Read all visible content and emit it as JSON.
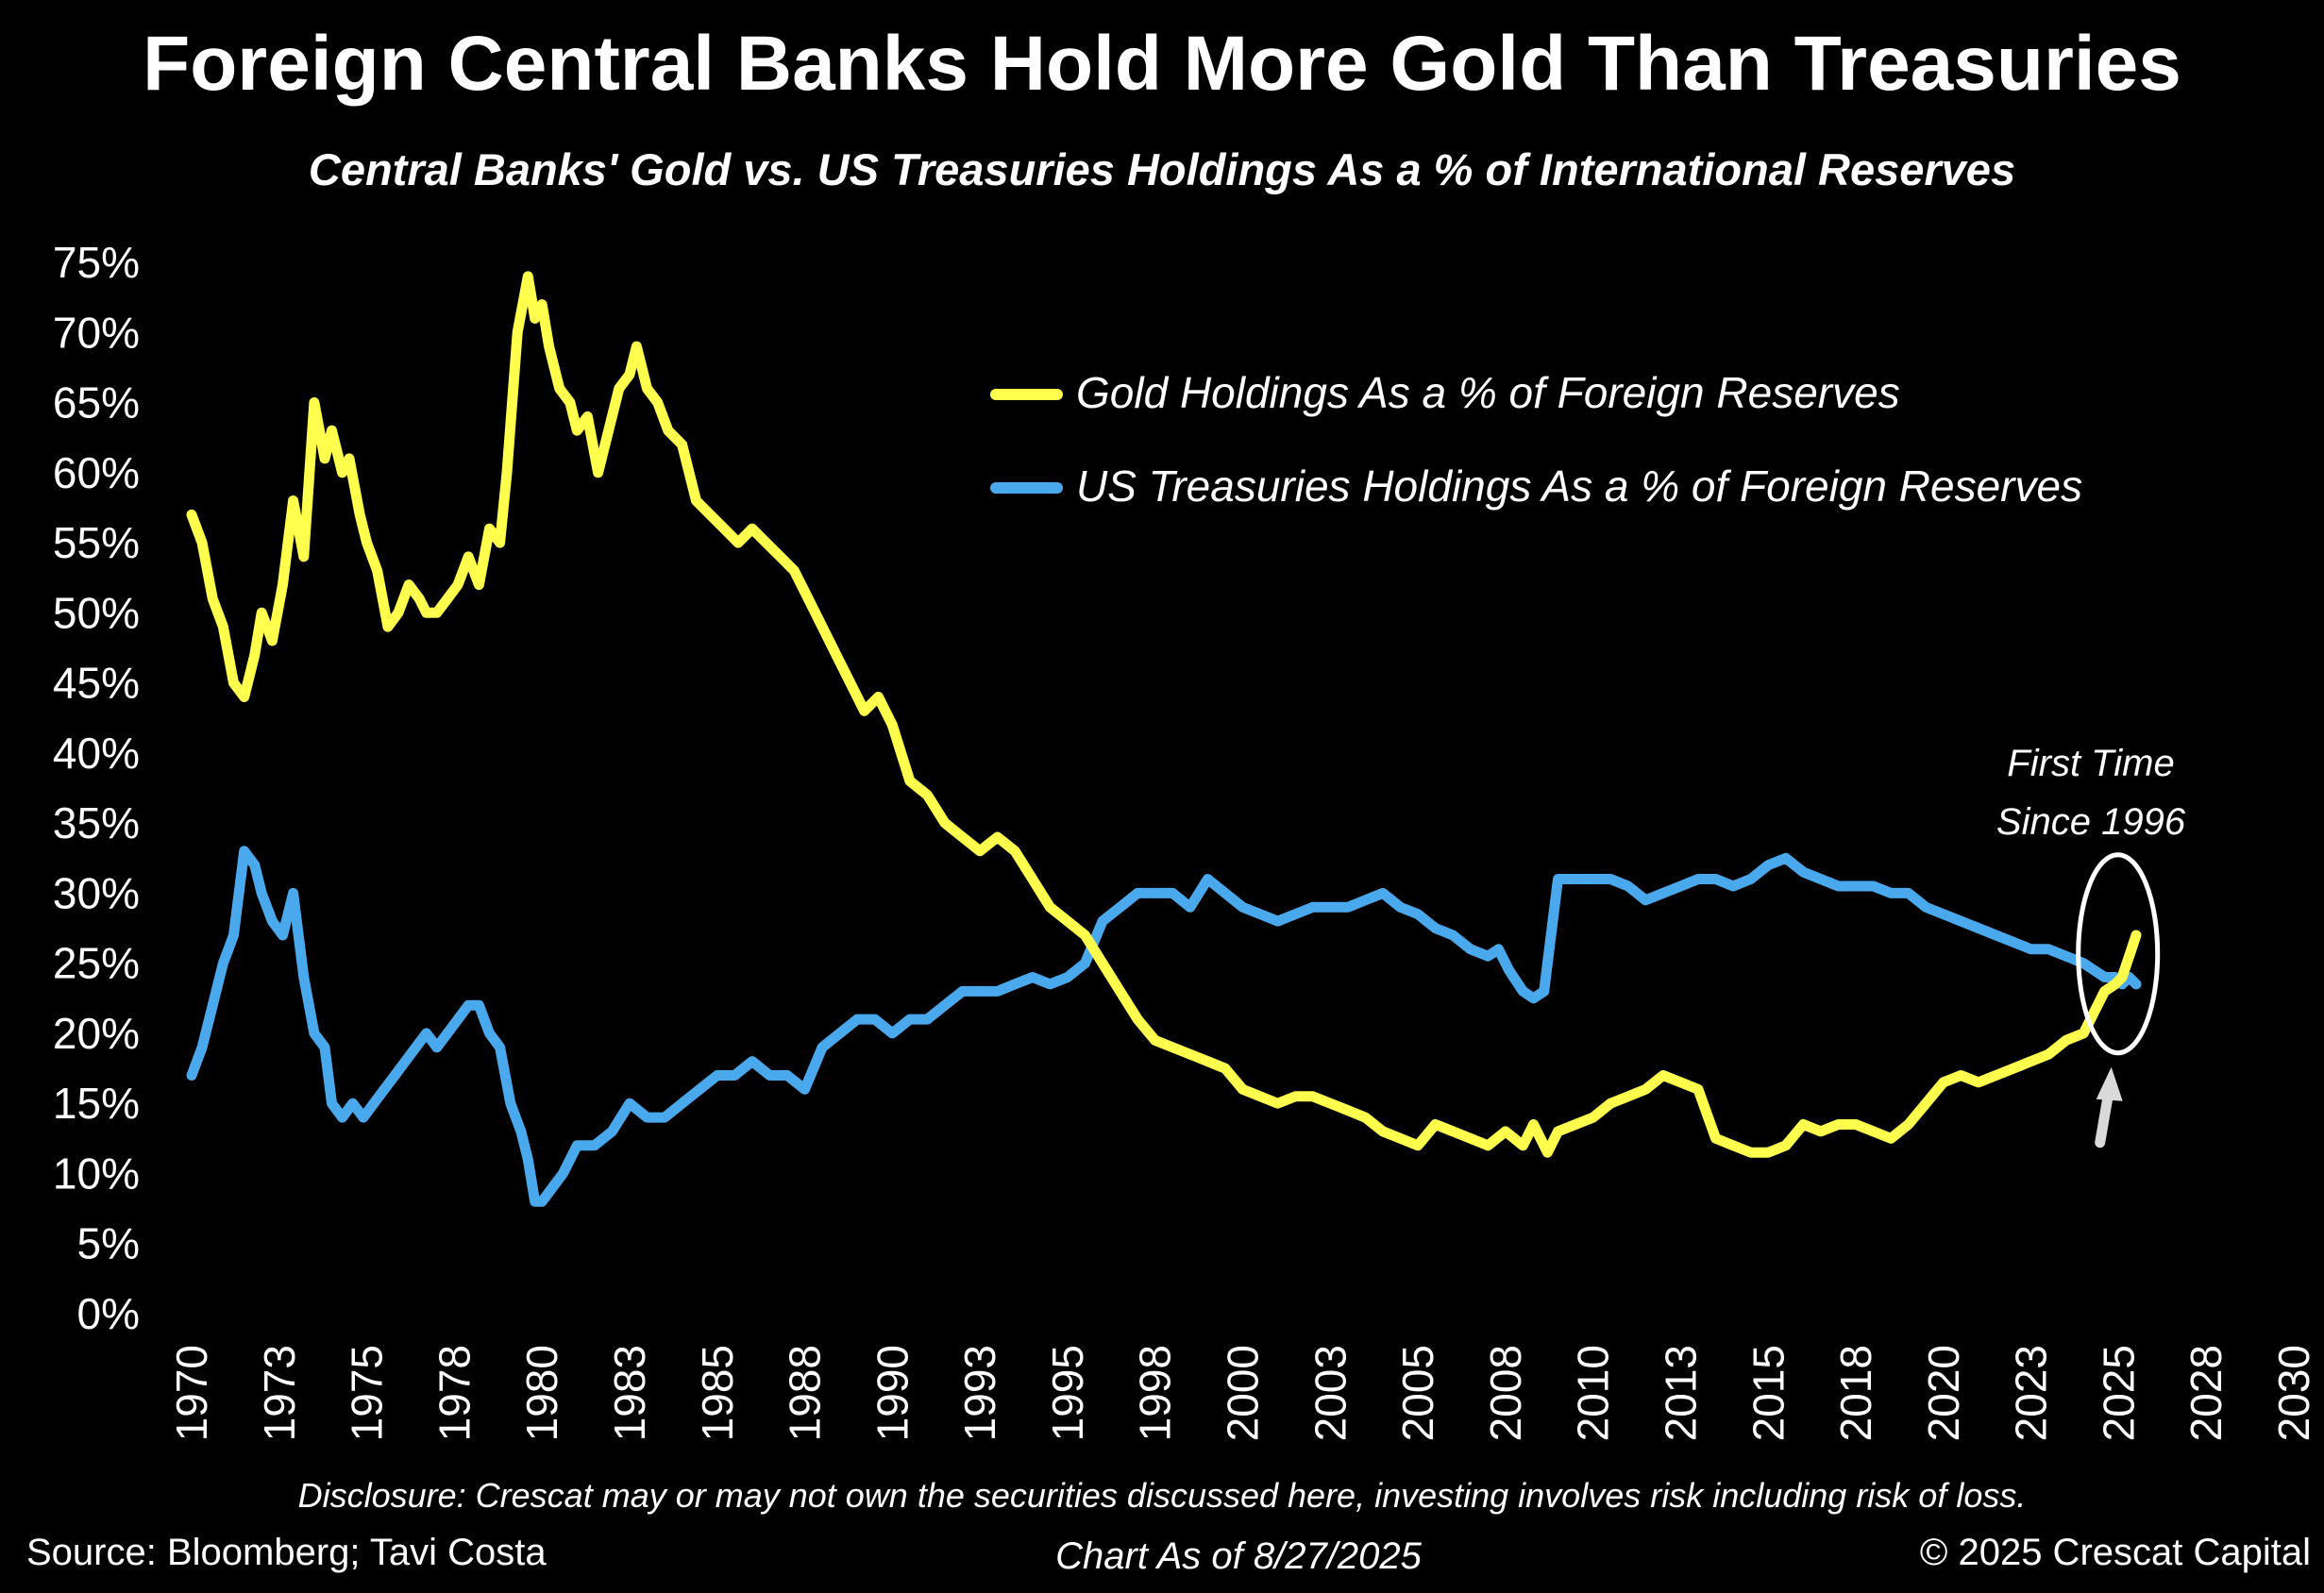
{
  "chart_data": {
    "type": "line",
    "title": "Foreign Central Banks Hold More Gold Than Treasuries",
    "subtitle": "Central Banks' Gold vs. US Treasuries Holdings As a % of International Reserves",
    "xlabel": "",
    "ylabel": "",
    "ylim": [
      0,
      75
    ],
    "xlim": [
      1970,
      2030
    ],
    "grid": false,
    "legend_position": "top-right",
    "y_tick_labels": [
      "0%",
      "5%",
      "10%",
      "15%",
      "20%",
      "25%",
      "30%",
      "35%",
      "40%",
      "45%",
      "50%",
      "55%",
      "60%",
      "65%",
      "70%",
      "75%"
    ],
    "y_ticks": [
      0,
      5,
      10,
      15,
      20,
      25,
      30,
      35,
      40,
      45,
      50,
      55,
      60,
      65,
      70,
      75
    ],
    "x_tick_labels": [
      "1970",
      "1973",
      "1975",
      "1978",
      "1980",
      "1983",
      "1985",
      "1988",
      "1990",
      "1993",
      "1995",
      "1998",
      "2000",
      "2003",
      "2005",
      "2008",
      "2010",
      "2013",
      "2015",
      "2018",
      "2020",
      "2023",
      "2025",
      "2028",
      "2030"
    ],
    "x_ticks": [
      1970,
      1972.5,
      1975,
      1977.5,
      1980,
      1982.5,
      1985,
      1987.5,
      1990,
      1992.5,
      1995,
      1997.5,
      2000,
      2002.5,
      2005,
      2007.5,
      2010,
      2012.5,
      2015,
      2017.5,
      2020,
      2022.5,
      2025,
      2027.5,
      2030
    ],
    "series": [
      {
        "name": "Gold Holdings As a % of Foreign Reserves",
        "color": "#FFFF4D",
        "x": [
          1970.0,
          1970.3,
          1970.6,
          1970.9,
          1971.2,
          1971.5,
          1971.8,
          1972.0,
          1972.3,
          1972.6,
          1972.9,
          1973.2,
          1973.5,
          1973.8,
          1974.0,
          1974.3,
          1974.5,
          1974.8,
          1975.0,
          1975.3,
          1975.6,
          1975.9,
          1976.2,
          1976.5,
          1976.7,
          1977.0,
          1977.3,
          1977.6,
          1977.9,
          1978.2,
          1978.5,
          1978.8,
          1979.0,
          1979.3,
          1979.6,
          1979.8,
          1980.0,
          1980.2,
          1980.5,
          1980.8,
          1981.0,
          1981.3,
          1981.6,
          1981.9,
          1982.2,
          1982.5,
          1982.7,
          1983.0,
          1983.3,
          1983.6,
          1984.0,
          1984.4,
          1984.8,
          1985.2,
          1985.6,
          1986.0,
          1986.4,
          1986.8,
          1987.2,
          1987.6,
          1988.0,
          1988.4,
          1988.8,
          1989.2,
          1989.6,
          1990.0,
          1990.5,
          1991.0,
          1991.5,
          1992.0,
          1992.5,
          1993.0,
          1993.5,
          1994.0,
          1994.5,
          1995.0,
          1995.5,
          1996.0,
          1996.5,
          1997.0,
          1997.5,
          1998.0,
          1998.5,
          1999.0,
          1999.5,
          2000.0,
          2000.5,
          2001.0,
          2001.5,
          2002.0,
          2002.5,
          2003.0,
          2003.5,
          2004.0,
          2004.5,
          2005.0,
          2005.5,
          2006.0,
          2006.5,
          2007.0,
          2007.5,
          2008.0,
          2008.3,
          2008.7,
          2009.0,
          2009.5,
          2010.0,
          2010.5,
          2011.0,
          2011.5,
          2012.0,
          2012.5,
          2013.0,
          2013.5,
          2014.0,
          2014.5,
          2015.0,
          2015.5,
          2016.0,
          2016.5,
          2017.0,
          2017.5,
          2018.0,
          2018.5,
          2019.0,
          2019.5,
          2020.0,
          2020.5,
          2021.0,
          2021.5,
          2022.0,
          2022.5,
          2023.0,
          2023.5,
          2024.0,
          2024.3,
          2024.6,
          2024.9,
          2025.1,
          2025.3,
          2025.5
        ],
        "values": [
          57,
          55,
          51,
          49,
          45,
          44,
          47,
          50,
          48,
          52,
          58,
          54,
          65,
          61,
          63,
          60,
          61,
          57,
          55,
          53,
          49,
          50,
          52,
          51,
          50,
          50,
          51,
          52,
          54,
          52,
          56,
          55,
          60,
          70,
          74,
          71,
          72,
          69,
          66,
          65,
          63,
          64,
          60,
          63,
          66,
          67,
          69,
          66,
          65,
          63,
          62,
          58,
          57,
          56,
          55,
          56,
          55,
          54,
          53,
          51,
          49,
          47,
          45,
          43,
          44,
          42,
          38,
          37,
          35,
          34,
          33,
          34,
          33,
          31,
          29,
          28,
          27,
          25,
          23,
          21,
          19.5,
          19,
          18.5,
          18,
          17.5,
          16,
          15.5,
          15,
          15.5,
          15.5,
          15,
          14.5,
          14,
          13,
          12.5,
          12,
          13.5,
          13,
          12.5,
          12,
          13,
          12,
          13.5,
          11.5,
          13,
          13.5,
          14,
          15,
          15.5,
          16,
          17,
          16.5,
          16,
          12.5,
          12,
          11.5,
          11.5,
          12,
          13.5,
          13,
          13.5,
          13.5,
          13,
          12.5,
          13.5,
          15,
          16.5,
          17,
          16.5,
          17,
          17.5,
          18,
          18.5,
          19.5,
          20,
          21.5,
          23,
          23.5,
          24,
          25.5,
          27
        ]
      },
      {
        "name": "US Treasuries Holdings As a % of Foreign Reserves",
        "color": "#4AA8EC",
        "x": [
          1970.0,
          1970.3,
          1970.6,
          1970.9,
          1971.2,
          1971.5,
          1971.8,
          1972.0,
          1972.3,
          1972.6,
          1972.9,
          1973.2,
          1973.5,
          1973.8,
          1974.0,
          1974.3,
          1974.6,
          1974.9,
          1975.2,
          1975.5,
          1975.8,
          1976.1,
          1976.4,
          1976.7,
          1977.0,
          1977.3,
          1977.6,
          1977.9,
          1978.2,
          1978.5,
          1978.8,
          1979.1,
          1979.4,
          1979.6,
          1979.8,
          1980.0,
          1980.3,
          1980.6,
          1981.0,
          1981.5,
          1982.0,
          1982.5,
          1983.0,
          1983.5,
          1984.0,
          1984.5,
          1985.0,
          1985.5,
          1986.0,
          1986.5,
          1987.0,
          1987.5,
          1988.0,
          1988.5,
          1989.0,
          1989.5,
          1990.0,
          1990.5,
          1991.0,
          1991.5,
          1992.0,
          1992.5,
          1993.0,
          1993.5,
          1994.0,
          1994.5,
          1995.0,
          1995.5,
          1996.0,
          1996.5,
          1997.0,
          1997.5,
          1998.0,
          1998.5,
          1999.0,
          1999.5,
          2000.0,
          2000.5,
          2001.0,
          2001.5,
          2002.0,
          2002.5,
          2003.0,
          2003.5,
          2004.0,
          2004.5,
          2005.0,
          2005.5,
          2006.0,
          2006.5,
          2007.0,
          2007.3,
          2007.6,
          2008.0,
          2008.3,
          2008.6,
          2009.0,
          2009.5,
          2010.0,
          2010.5,
          2011.0,
          2011.5,
          2012.0,
          2012.5,
          2013.0,
          2013.5,
          2014.0,
          2014.5,
          2015.0,
          2015.5,
          2016.0,
          2016.5,
          2017.0,
          2017.5,
          2018.0,
          2018.5,
          2019.0,
          2019.5,
          2020.0,
          2020.5,
          2021.0,
          2021.5,
          2022.0,
          2022.5,
          2023.0,
          2023.5,
          2024.0,
          2024.3,
          2024.6,
          2024.9,
          2025.1,
          2025.3,
          2025.5
        ],
        "values": [
          17,
          19,
          22,
          25,
          27,
          33,
          32,
          30,
          28,
          27,
          30,
          24,
          20,
          19,
          15,
          14,
          15,
          14,
          15,
          16,
          17,
          18,
          19,
          20,
          19,
          20,
          21,
          22,
          22,
          20,
          19,
          15,
          13,
          11,
          8,
          8,
          9,
          10,
          12,
          12,
          13,
          15,
          14,
          14,
          15,
          16,
          17,
          17,
          18,
          17,
          17,
          16,
          19,
          20,
          21,
          21,
          20,
          21,
          21,
          22,
          23,
          23,
          23,
          23.5,
          24,
          23.5,
          24,
          25,
          28,
          29,
          30,
          30,
          30,
          29,
          31,
          30,
          29,
          28.5,
          28,
          28.5,
          29,
          29,
          29,
          29.5,
          30,
          29,
          28.5,
          27.5,
          27,
          26,
          25.5,
          26,
          24.5,
          23,
          22.5,
          23,
          31,
          31,
          31,
          31,
          30.5,
          29.5,
          30,
          30.5,
          31,
          31,
          30.5,
          31,
          32,
          32.5,
          31.5,
          31,
          30.5,
          30.5,
          30.5,
          30,
          30,
          29,
          28.5,
          28,
          27.5,
          27,
          26.5,
          26,
          26,
          25.5,
          25,
          24.5,
          24,
          24,
          23.5,
          24,
          23.5
        ]
      }
    ],
    "legend": [
      "Gold Holdings As a % of Foreign Reserves",
      "US Treasuries Holdings As a % of Foreign Reserves"
    ],
    "annotation": {
      "line1": "First Time",
      "line2": "Since 1996",
      "highlight_x": 2024.9,
      "highlight_y": 25,
      "color": "#FFFFFF"
    }
  },
  "footer": {
    "disclosure": "Disclosure: Crescat may or may not own the securities discussed here, investing involves risk including risk of loss.",
    "source": "Source: Bloomberg; Tavi Costa",
    "chart_date": "Chart As of 8/27/2025",
    "copyright": "© 2025 Crescat Capital"
  },
  "colors": {
    "background": "#000000",
    "text": "#FFFFFF",
    "gold": "#FFFF4D",
    "treasuries": "#4AA8EC"
  }
}
